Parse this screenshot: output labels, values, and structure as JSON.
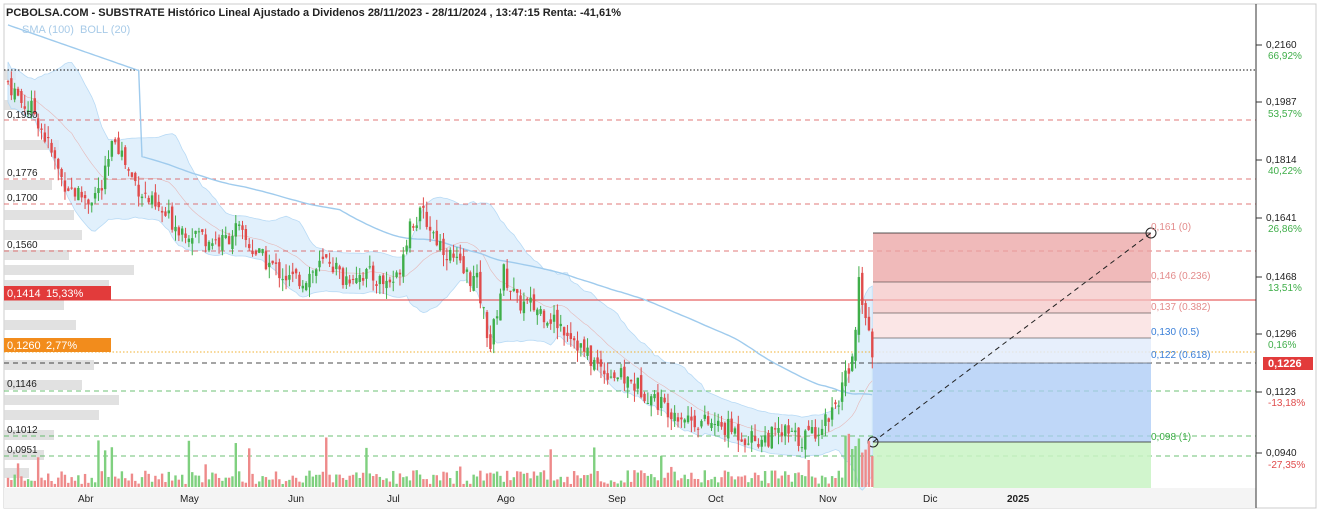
{
  "title": "PCBOLSA.COM - SUBSTRATE Histórico Lineal Ajustado a Dividenos 28/11/2023 - 28/11/2024 , 13:47:15 Renta: -41,61%",
  "legend": {
    "sma": "SMA (100)",
    "boll": "BOLL (20)"
  },
  "colors": {
    "up": "#3fae49",
    "down": "#e04b4b",
    "sma": "#9fcbed",
    "band": "#d7ebfb",
    "last": "#e23b3b",
    "accent_orange": "#f28c1c",
    "fib_red": "#e8a0a0",
    "fib_blue": "#a9c9f6",
    "fib_green": "#c9f3c4"
  },
  "right_axis": [
    {
      "price": "0,2160",
      "pct": "66,92%",
      "pct_color": "#3fae49"
    },
    {
      "price": "0,1987",
      "pct": "53,57%",
      "pct_color": "#3fae49"
    },
    {
      "price": "0,1814",
      "pct": "40,22%",
      "pct_color": "#3fae49"
    },
    {
      "price": "0,1641",
      "pct": "26,86%",
      "pct_color": "#3fae49"
    },
    {
      "price": "0,1468",
      "pct": "13,51%",
      "pct_color": "#3fae49"
    },
    {
      "price": "0,1296",
      "pct": "0,16%",
      "pct_color": "#3fae49"
    },
    {
      "price": "0,1123",
      "pct": "-13,18%",
      "pct_color": "#e04b4b"
    },
    {
      "price": "0,0940",
      "pct": "-27,35%",
      "pct_color": "#e04b4b"
    }
  ],
  "last_price": "0,1226",
  "left_levels": [
    "0,1950",
    "0,1776",
    "0,1700",
    "0,1560",
    "0,1146",
    "0,1012",
    "0,0951"
  ],
  "badge_red": {
    "price": "0,1414",
    "pct": "15,33%"
  },
  "badge_orange": {
    "price": "0,1260",
    "pct": "2,77%"
  },
  "fib_labels": [
    "0,161 (0)",
    "0,146 (0.236)",
    "0,137 (0.382)",
    "0,130 (0.5)",
    "0,122 (0.618)",
    "0,098 (1)"
  ],
  "chart_data": {
    "type": "candlestick",
    "title": "PCBOLSA.COM - SUBSTRATE Histórico Lineal Ajustado a Dividenos 28/11/2023 - 28/11/2024 , 13:47:15 Renta: -41,61%",
    "x_ticks": [
      "Abr",
      "May",
      "Jun",
      "Jul",
      "Ago",
      "Sep",
      "Oct",
      "Nov",
      "Dic",
      "2025"
    ],
    "y_ticks": [
      0.216,
      0.1987,
      0.1814,
      0.1641,
      0.1468,
      0.1296,
      0.1123,
      0.094
    ],
    "ylim": [
      0.088,
      0.224
    ],
    "last_price": 0.1226,
    "grid": false,
    "series_close": [
      {
        "t": 0,
        "c": 0.205
      },
      {
        "t": 4,
        "c": 0.199
      },
      {
        "t": 8,
        "c": 0.196
      },
      {
        "t": 12,
        "c": 0.186
      },
      {
        "t": 16,
        "c": 0.176
      },
      {
        "t": 20,
        "c": 0.172
      },
      {
        "t": 24,
        "c": 0.17
      },
      {
        "t": 28,
        "c": 0.173
      },
      {
        "t": 32,
        "c": 0.189
      },
      {
        "t": 36,
        "c": 0.178
      },
      {
        "t": 40,
        "c": 0.172
      },
      {
        "t": 44,
        "c": 0.167
      },
      {
        "t": 48,
        "c": 0.164
      },
      {
        "t": 52,
        "c": 0.161
      },
      {
        "t": 56,
        "c": 0.16
      },
      {
        "t": 60,
        "c": 0.158
      },
      {
        "t": 64,
        "c": 0.157
      },
      {
        "t": 68,
        "c": 0.161
      },
      {
        "t": 72,
        "c": 0.156
      },
      {
        "t": 76,
        "c": 0.152
      },
      {
        "t": 80,
        "c": 0.149
      },
      {
        "t": 84,
        "c": 0.146
      },
      {
        "t": 88,
        "c": 0.146
      },
      {
        "t": 92,
        "c": 0.149
      },
      {
        "t": 96,
        "c": 0.152
      },
      {
        "t": 100,
        "c": 0.146
      },
      {
        "t": 104,
        "c": 0.148
      },
      {
        "t": 108,
        "c": 0.147
      },
      {
        "t": 112,
        "c": 0.145
      },
      {
        "t": 116,
        "c": 0.146
      },
      {
        "t": 120,
        "c": 0.163
      },
      {
        "t": 124,
        "c": 0.165
      },
      {
        "t": 128,
        "c": 0.158
      },
      {
        "t": 132,
        "c": 0.153
      },
      {
        "t": 136,
        "c": 0.148
      },
      {
        "t": 140,
        "c": 0.145
      },
      {
        "t": 144,
        "c": 0.126
      },
      {
        "t": 148,
        "c": 0.148
      },
      {
        "t": 152,
        "c": 0.139
      },
      {
        "t": 156,
        "c": 0.138
      },
      {
        "t": 160,
        "c": 0.136
      },
      {
        "t": 164,
        "c": 0.133
      },
      {
        "t": 168,
        "c": 0.13
      },
      {
        "t": 172,
        "c": 0.124
      },
      {
        "t": 176,
        "c": 0.12
      },
      {
        "t": 180,
        "c": 0.118
      },
      {
        "t": 184,
        "c": 0.116
      },
      {
        "t": 188,
        "c": 0.114
      },
      {
        "t": 192,
        "c": 0.111
      },
      {
        "t": 196,
        "c": 0.108
      },
      {
        "t": 200,
        "c": 0.106
      },
      {
        "t": 204,
        "c": 0.104
      },
      {
        "t": 208,
        "c": 0.103
      },
      {
        "t": 212,
        "c": 0.102
      },
      {
        "t": 216,
        "c": 0.101
      },
      {
        "t": 220,
        "c": 0.099
      },
      {
        "t": 224,
        "c": 0.098
      },
      {
        "t": 228,
        "c": 0.099
      },
      {
        "t": 232,
        "c": 0.1
      },
      {
        "t": 236,
        "c": 0.098
      },
      {
        "t": 240,
        "c": 0.1
      },
      {
        "t": 244,
        "c": 0.104
      },
      {
        "t": 248,
        "c": 0.111
      },
      {
        "t": 252,
        "c": 0.121
      },
      {
        "t": 254,
        "c": 0.144
      },
      {
        "t": 256,
        "c": 0.137
      },
      {
        "t": 258,
        "c": 0.1226
      }
    ]
  }
}
